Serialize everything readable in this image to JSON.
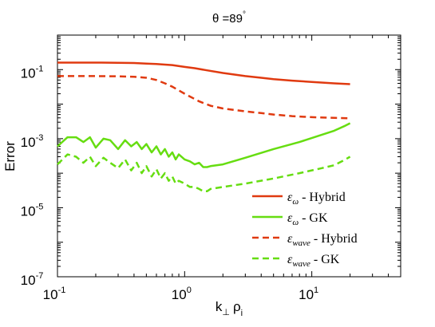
{
  "chart_data": {
    "type": "line",
    "title": "θ =89°",
    "title_main": "θ =89",
    "title_sup": "°",
    "xlabel": "k⊥ ρi",
    "xlabel_parts": {
      "k": "k",
      "k_sub": "⊥",
      "rho": "ρ",
      "rho_sub": "i"
    },
    "ylabel": "Error",
    "xscale": "log",
    "yscale": "log",
    "xlim": [
      0.1,
      50
    ],
    "ylim": [
      1e-07,
      1
    ],
    "xticks": [
      {
        "value": 0.1,
        "base": "10",
        "exp": "-1"
      },
      {
        "value": 1,
        "base": "10",
        "exp": "0"
      },
      {
        "value": 10,
        "base": "10",
        "exp": "1"
      }
    ],
    "yticks": [
      {
        "value": 1e-07,
        "base": "10",
        "exp": "-7"
      },
      {
        "value": 1e-05,
        "base": "10",
        "exp": "-5"
      },
      {
        "value": 0.001,
        "base": "10",
        "exp": "-3"
      },
      {
        "value": 0.1,
        "base": "10",
        "exp": "-1"
      }
    ],
    "grid": false,
    "legend_position": "bottom-right",
    "series": [
      {
        "name": "εω - Hybrid",
        "legend": {
          "eps": "ε",
          "sub": "ω",
          "text": " - Hybrid"
        },
        "color": "#e03a10",
        "dash": "solid",
        "x": [
          0.1,
          0.2,
          0.3,
          0.4,
          0.5,
          0.6,
          0.7,
          0.8,
          1.0,
          1.2,
          1.5,
          2,
          3,
          4,
          5,
          7,
          10,
          15,
          20
        ],
        "y": [
          0.16,
          0.16,
          0.158,
          0.155,
          0.15,
          0.145,
          0.14,
          0.135,
          0.12,
          0.11,
          0.095,
          0.08,
          0.065,
          0.058,
          0.053,
          0.048,
          0.044,
          0.04,
          0.038
        ]
      },
      {
        "name": "εω - GK",
        "legend": {
          "eps": "ε",
          "sub": "ω",
          "text": " - GK"
        },
        "color": "#66dd11",
        "dash": "solid",
        "x": [
          0.1,
          0.12,
          0.14,
          0.16,
          0.18,
          0.2,
          0.23,
          0.26,
          0.3,
          0.34,
          0.38,
          0.42,
          0.46,
          0.5,
          0.55,
          0.6,
          0.65,
          0.7,
          0.75,
          0.8,
          0.85,
          0.9,
          1.0,
          1.1,
          1.2,
          1.3,
          1.4,
          1.5,
          1.6,
          2,
          3,
          5,
          8,
          12,
          15,
          18,
          20
        ],
        "y": [
          0.0006,
          0.0011,
          0.0011,
          0.0008,
          0.0011,
          0.00055,
          0.001,
          0.0009,
          0.0005,
          0.0009,
          0.0006,
          0.0008,
          0.0005,
          0.0007,
          0.0004,
          0.0006,
          0.00035,
          0.0005,
          0.0003,
          0.0004,
          0.00025,
          0.00035,
          0.00025,
          0.00022,
          0.00018,
          0.0002,
          0.00015,
          0.00015,
          0.00016,
          0.00018,
          0.00028,
          0.0005,
          0.0008,
          0.0013,
          0.0017,
          0.0023,
          0.0028
        ]
      },
      {
        "name": "εwave - Hybrid",
        "legend": {
          "eps": "ε",
          "sub": "wave",
          "text": " - Hybrid"
        },
        "color": "#e03a10",
        "dash": "dashed",
        "x": [
          0.1,
          0.2,
          0.3,
          0.4,
          0.5,
          0.6,
          0.7,
          0.8,
          1.0,
          1.3,
          1.6,
          2,
          3,
          4,
          5,
          7,
          10,
          15,
          20
        ],
        "y": [
          0.065,
          0.065,
          0.064,
          0.062,
          0.058,
          0.05,
          0.04,
          0.032,
          0.02,
          0.012,
          0.009,
          0.0075,
          0.0062,
          0.0055,
          0.005,
          0.0045,
          0.0042,
          0.004,
          0.0039
        ]
      },
      {
        "name": "εwave - GK",
        "legend": {
          "eps": "ε",
          "sub": "wave",
          "text": " - GK"
        },
        "color": "#66dd11",
        "dash": "dashed",
        "x": [
          0.1,
          0.12,
          0.14,
          0.16,
          0.18,
          0.2,
          0.23,
          0.26,
          0.3,
          0.34,
          0.38,
          0.42,
          0.46,
          0.5,
          0.55,
          0.6,
          0.65,
          0.7,
          0.75,
          0.8,
          0.85,
          0.9,
          1.0,
          1.1,
          1.2,
          1.3,
          1.4,
          1.5,
          1.6,
          2,
          3,
          5,
          8,
          12,
          15,
          18,
          20
        ],
        "y": [
          0.00018,
          0.00035,
          0.0003,
          0.0002,
          0.0003,
          0.00016,
          0.00028,
          0.0002,
          0.00014,
          0.00025,
          0.00012,
          0.0002,
          0.0001,
          0.00016,
          8e-05,
          0.00013,
          7e-05,
          0.0001,
          6e-05,
          8e-05,
          5e-05,
          6e-05,
          5e-05,
          4e-05,
          4e-05,
          3.5e-05,
          3e-05,
          3e-05,
          3.5e-05,
          4e-05,
          5e-05,
          7e-05,
          0.0001,
          0.00014,
          0.00017,
          0.00024,
          0.0003
        ]
      }
    ]
  }
}
